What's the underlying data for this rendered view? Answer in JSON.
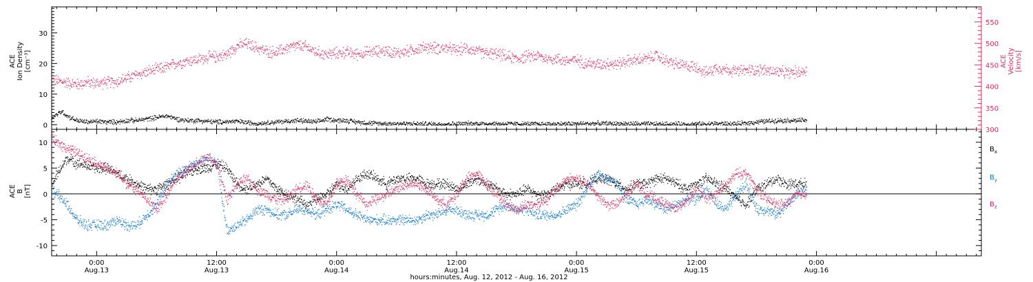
{
  "colors": {
    "black": "#000000",
    "pink": "#e8285a",
    "blue": "#1078d8"
  },
  "xaxis": {
    "title": "hours:minutes, Aug. 12, 2012 - Aug. 16, 2012",
    "range_hours": [
      -4.5,
      88.5
    ],
    "ticks": [
      {
        "h": 0,
        "time": "0:00",
        "date": "Aug.13"
      },
      {
        "h": 12,
        "time": "12:00",
        "date": "Aug.13"
      },
      {
        "h": 24,
        "time": "0:00",
        "date": "Aug.14"
      },
      {
        "h": 36,
        "time": "12:00",
        "date": "Aug.14"
      },
      {
        "h": 48,
        "time": "0:00",
        "date": "Aug.15"
      },
      {
        "h": 60,
        "time": "12:00",
        "date": "Aug.15"
      },
      {
        "h": 72,
        "time": "0:00",
        "date": "Aug.16"
      }
    ]
  },
  "chart_data": [
    {
      "type": "scatter",
      "panel": "top",
      "ylabel_left": [
        "ACE",
        "Ion Density",
        "[cm⁻³]"
      ],
      "ylabel_right": [
        "ACE",
        "Velocity",
        "[km/s]"
      ],
      "ylim_left": [
        -1.5,
        38.5
      ],
      "ylim_right": [
        300,
        585
      ],
      "yticks_left": [
        0,
        10,
        20,
        30
      ],
      "yticks_right": [
        300,
        350,
        400,
        450,
        500,
        550
      ],
      "series": [
        {
          "key": "velocity",
          "axis": "right",
          "color": "pink",
          "x": [
            -4.5,
            -3,
            -2,
            -1,
            0,
            1,
            2,
            3,
            4,
            5,
            6,
            7,
            8,
            9,
            10,
            11,
            12,
            13,
            14,
            15,
            16,
            17,
            18,
            19,
            20,
            21,
            22,
            23,
            24,
            25,
            26,
            27,
            28,
            29,
            30,
            31,
            32,
            33,
            34,
            35,
            36,
            37,
            38,
            39,
            40,
            41,
            42,
            43,
            44,
            45,
            46,
            47,
            48,
            49,
            50,
            51,
            52,
            53,
            54,
            55,
            56,
            57,
            58,
            59,
            60,
            61,
            62,
            63,
            64,
            65,
            66,
            67,
            68,
            69,
            70,
            71
          ],
          "y": [
            415,
            410,
            405,
            410,
            408,
            410,
            412,
            420,
            428,
            435,
            440,
            445,
            455,
            460,
            463,
            468,
            470,
            475,
            495,
            500,
            490,
            482,
            480,
            490,
            495,
            492,
            480,
            475,
            478,
            480,
            476,
            480,
            482,
            484,
            478,
            482,
            488,
            492,
            490,
            490,
            485,
            490,
            482,
            478,
            476,
            470,
            465,
            470,
            472,
            465,
            465,
            460,
            462,
            455,
            452,
            455,
            452,
            460,
            462,
            465,
            472,
            460,
            452,
            448,
            446,
            432,
            445,
            440,
            436,
            438,
            440,
            438,
            434,
            432,
            434,
            437
          ]
        },
        {
          "key": "density",
          "axis": "left",
          "color": "black",
          "x": [
            -4.5,
            -3.5,
            -3,
            -2,
            -1,
            0,
            1,
            2,
            3,
            4,
            5,
            6,
            7,
            8,
            9,
            10,
            12,
            14,
            16,
            18,
            20,
            22,
            23,
            24,
            25,
            26,
            28,
            30,
            34,
            38,
            44,
            50,
            56,
            60,
            62,
            64,
            66,
            68,
            70,
            71
          ],
          "y": [
            2.5,
            4.5,
            3,
            1.5,
            1,
            1.2,
            1,
            1,
            1.5,
            1.5,
            2,
            2.5,
            3,
            2,
            1.5,
            1.5,
            1,
            1.2,
            0.5,
            1,
            1.5,
            1,
            2,
            1.5,
            1.5,
            1,
            0.5,
            0.5,
            0.3,
            0.5,
            0.3,
            0.5,
            0.3,
            0.3,
            0.5,
            0.3,
            1,
            1.5,
            1.5,
            1.5
          ]
        }
      ]
    },
    {
      "type": "scatter",
      "panel": "bottom",
      "ylabel_left": [
        "ACE",
        "B",
        "[nT]"
      ],
      "ylim": [
        -12,
        12.5
      ],
      "yticks": [
        -10,
        -5,
        0,
        5,
        10
      ],
      "zero_line": true,
      "series": [
        {
          "key": "bx",
          "name": "B",
          "sub": "x",
          "color": "black",
          "x": [
            -4.5,
            -3,
            -2,
            -1,
            0,
            1,
            2,
            3,
            4,
            5,
            6,
            7,
            8,
            9,
            10,
            11,
            12,
            13,
            14,
            15,
            16,
            17,
            18,
            19,
            20,
            21,
            22,
            23,
            24,
            25,
            26,
            27,
            28,
            29,
            30,
            31,
            32,
            33,
            34,
            35,
            36,
            37,
            38,
            39,
            40,
            41,
            42,
            43,
            44,
            45,
            46,
            47,
            48,
            49,
            50,
            51,
            52,
            53,
            54,
            55,
            56,
            57,
            58,
            59,
            60,
            61,
            62,
            63,
            64,
            65,
            66,
            67,
            68,
            69,
            70,
            71
          ],
          "y": [
            2,
            7,
            6,
            5.5,
            5,
            5,
            4,
            3,
            2,
            1,
            1,
            2,
            3,
            4,
            5,
            5,
            6,
            5,
            2,
            1,
            2,
            3,
            1,
            0,
            -1,
            -2,
            -1,
            0,
            2,
            1,
            3,
            4,
            3,
            2,
            3,
            3,
            3,
            2,
            2,
            2,
            1,
            2,
            3,
            2,
            1,
            0,
            0,
            1,
            0,
            0,
            1,
            2,
            2,
            2,
            3,
            3,
            2,
            1,
            2,
            2,
            3,
            3,
            2,
            1,
            2,
            3,
            2,
            1,
            -1,
            -2,
            1,
            2,
            3,
            2,
            2,
            2
          ]
        },
        {
          "key": "by",
          "name": "B",
          "sub": "y",
          "color": "blue",
          "x": [
            -4.5,
            -3,
            -2,
            -1,
            0,
            1,
            2,
            3,
            4,
            5,
            6,
            7,
            8,
            9,
            10,
            11,
            12,
            13,
            14,
            15,
            16,
            17,
            18,
            19,
            20,
            21,
            22,
            23,
            24,
            25,
            26,
            27,
            28,
            29,
            30,
            31,
            32,
            33,
            34,
            35,
            36,
            37,
            38,
            39,
            40,
            41,
            42,
            43,
            44,
            45,
            46,
            47,
            48,
            49,
            50,
            51,
            52,
            53,
            54,
            55,
            56,
            57,
            58,
            59,
            60,
            61,
            62,
            63,
            64,
            65,
            66,
            67,
            68,
            69,
            70,
            71
          ],
          "y": [
            1,
            -2,
            -5,
            -6,
            -6,
            -6,
            -5,
            -6,
            -6,
            -4,
            -2,
            2,
            4,
            5,
            6,
            7,
            6,
            -7,
            -6,
            -5,
            -3,
            -3,
            -4,
            -4,
            -3,
            -3,
            -4,
            -3,
            -2,
            -3,
            -4,
            -5,
            -5,
            -5,
            -5,
            -5,
            -5,
            -4,
            -4,
            -3,
            -3,
            -4,
            -4,
            -4,
            -3,
            -2,
            -3,
            -3,
            -4,
            -4,
            -4,
            -3,
            -2,
            1,
            4,
            3,
            2,
            -1,
            -2,
            -1,
            -2,
            -3,
            -2,
            -1,
            -1,
            1,
            -2,
            -3,
            0,
            2,
            -3,
            -3,
            -4,
            -2,
            0,
            1
          ]
        },
        {
          "key": "bz",
          "name": "B",
          "sub": "z",
          "color": "pink",
          "x": [
            -4.5,
            -3,
            -2,
            -1,
            0,
            1,
            2,
            3,
            4,
            5,
            6,
            7,
            8,
            9,
            10,
            11,
            12,
            13,
            14,
            15,
            16,
            17,
            18,
            19,
            20,
            21,
            22,
            23,
            24,
            25,
            26,
            27,
            28,
            29,
            30,
            31,
            32,
            33,
            34,
            35,
            36,
            37,
            38,
            39,
            40,
            41,
            42,
            43,
            44,
            45,
            46,
            47,
            48,
            49,
            50,
            51,
            52,
            53,
            54,
            55,
            56,
            57,
            58,
            59,
            60,
            61,
            62,
            63,
            64,
            65,
            66,
            67,
            68,
            69,
            70,
            71
          ],
          "y": [
            10.5,
            9,
            8,
            7,
            6,
            5,
            4,
            2,
            1,
            -1,
            -3,
            0,
            3,
            5,
            6,
            7,
            6,
            -1,
            2,
            3,
            1,
            0,
            -1,
            -1,
            1,
            2,
            -1,
            -2,
            2,
            3,
            0,
            -2,
            -1,
            0,
            1,
            2,
            2,
            1,
            -1,
            -2,
            0,
            3,
            4,
            2,
            0,
            -2,
            -3,
            -2,
            -2,
            -1,
            1,
            3,
            3,
            2,
            0,
            -2,
            -2,
            0,
            2,
            0,
            -1,
            -2,
            -3,
            -1,
            1,
            -1,
            0,
            2,
            4,
            4,
            1,
            -1,
            -2,
            -2,
            0,
            0
          ]
        }
      ]
    }
  ]
}
